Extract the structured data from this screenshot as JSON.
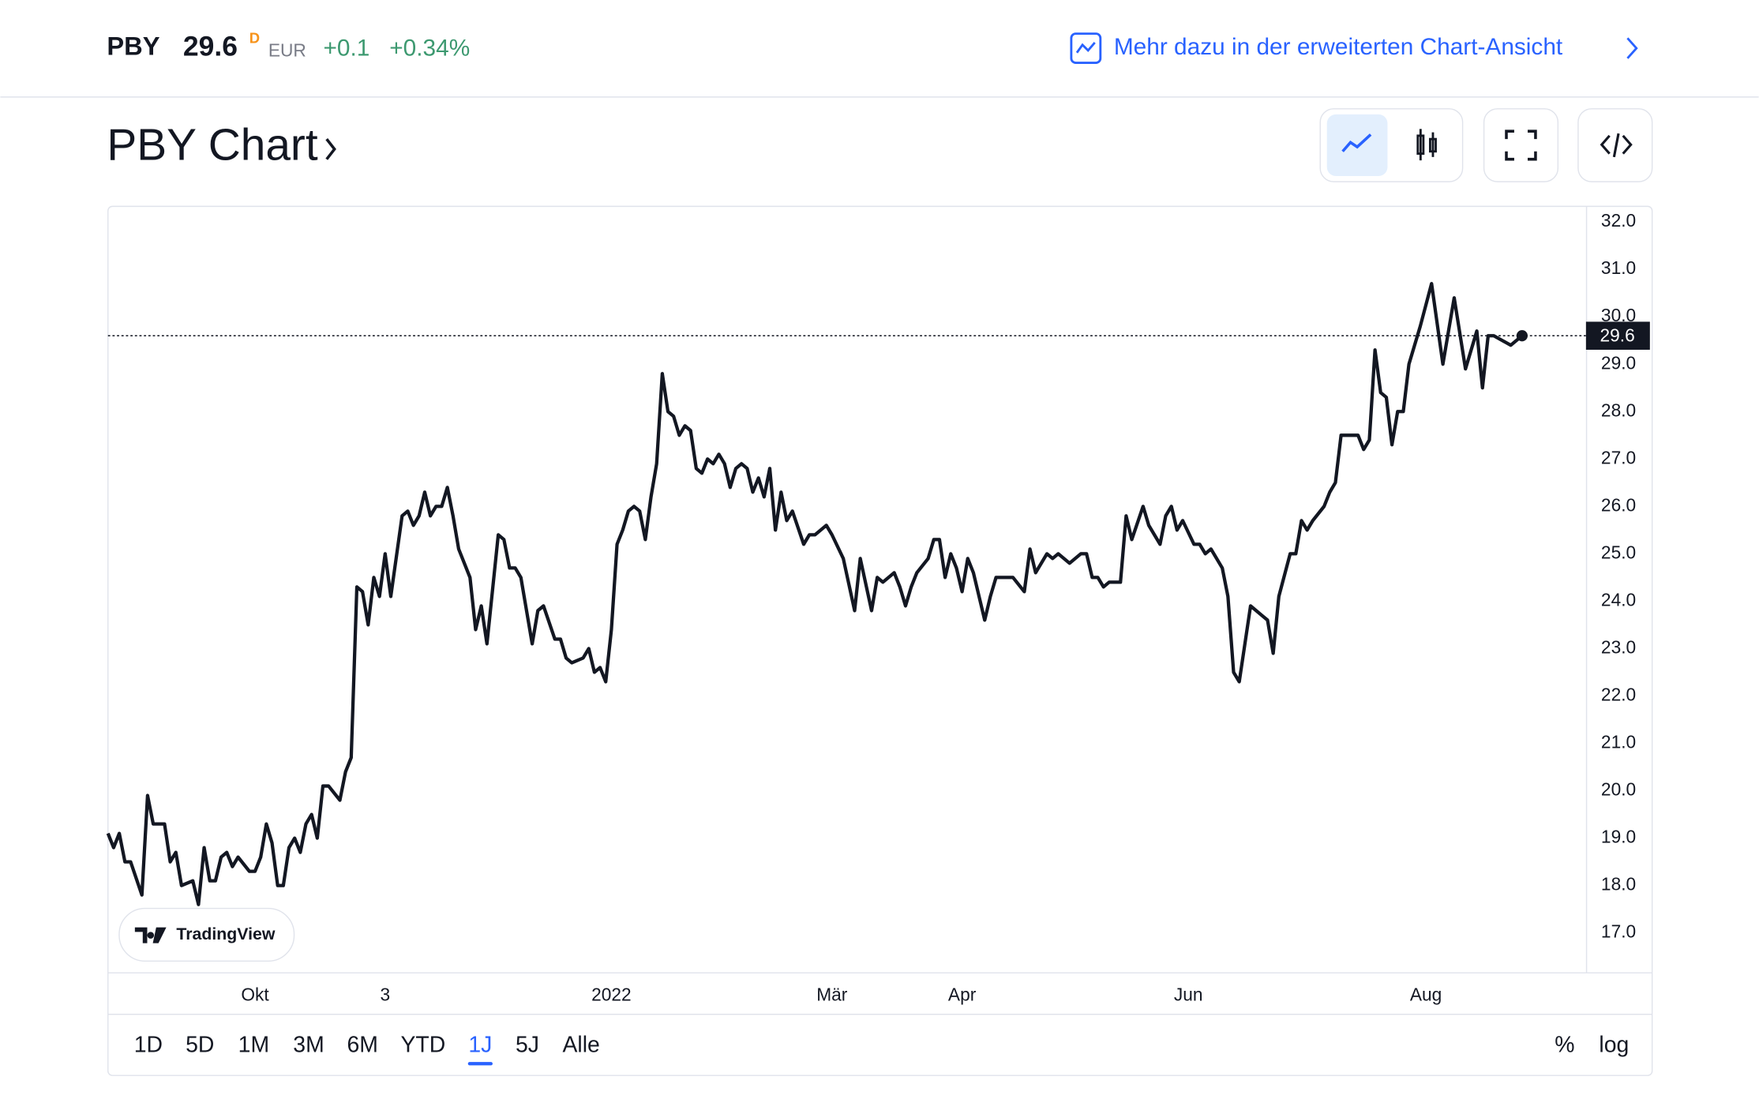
{
  "header": {
    "symbol": "PBY",
    "price": "29.6",
    "flag": "D",
    "currency": "EUR",
    "change": "+0.1",
    "change_pct": "+0.34%",
    "link": "Mehr dazu in der erweiterten Chart-Ansicht"
  },
  "title": "PBY Chart",
  "ranges": [
    "1D",
    "5D",
    "1M",
    "3M",
    "6M",
    "YTD",
    "1J",
    "5J",
    "Alle"
  ],
  "active_range": 6,
  "scale_options": [
    "%",
    "log"
  ],
  "branding": "TradingView",
  "chart_data": {
    "type": "line",
    "series": [
      {
        "name": "PBY",
        "color": "#131722",
        "x": [
          0,
          1,
          2,
          3,
          4,
          6,
          7,
          8,
          10,
          11,
          12,
          13,
          15,
          16,
          17,
          18,
          19,
          20,
          21,
          22,
          23,
          25,
          26,
          27,
          28,
          29,
          30,
          31,
          32,
          33,
          34,
          35,
          36,
          37,
          38,
          39,
          41,
          42,
          43,
          44,
          45,
          46,
          47,
          48,
          49,
          50,
          52,
          53,
          54,
          55,
          56,
          57,
          58,
          59,
          60,
          61,
          62,
          64,
          65,
          66,
          67,
          69,
          70,
          71,
          72,
          73,
          75,
          76,
          77,
          79,
          80,
          81,
          82,
          84,
          85,
          86,
          87,
          88,
          89,
          90,
          91,
          92,
          93,
          94,
          95,
          96,
          97,
          98,
          99,
          100,
          101,
          102,
          103,
          104,
          105,
          106,
          107,
          108,
          109,
          110,
          111,
          112,
          113,
          114,
          115,
          116,
          117,
          118,
          119,
          120,
          121,
          123,
          124,
          125,
          126,
          127,
          128,
          130,
          132,
          133,
          135,
          136,
          137,
          139,
          140,
          141,
          142,
          143,
          145,
          146,
          147,
          148,
          149,
          150,
          151,
          152,
          153,
          155,
          156,
          157,
          159,
          160,
          162,
          163,
          164,
          166,
          167,
          168,
          170,
          172,
          173,
          174,
          175,
          176,
          177,
          178,
          179,
          180,
          181,
          183,
          184,
          186,
          187,
          188,
          189,
          190,
          192,
          193,
          194,
          195,
          197,
          198,
          199,
          200,
          201,
          202,
          204,
          205,
          206,
          207,
          209,
          210,
          211,
          212,
          213,
          215,
          216,
          217,
          218,
          221,
          222,
          223,
          224,
          225,
          226,
          227,
          228,
          229,
          230,
          232,
          234,
          236,
          238,
          240,
          242,
          243,
          244,
          245,
          248,
          250
        ],
        "values": [
          19.1,
          18.8,
          19.1,
          18.5,
          18.5,
          17.8,
          19.9,
          19.3,
          19.3,
          18.5,
          18.7,
          18.0,
          18.1,
          17.6,
          18.8,
          18.1,
          18.1,
          18.6,
          18.7,
          18.4,
          18.6,
          18.3,
          18.3,
          18.6,
          19.3,
          18.9,
          18.0,
          18.0,
          18.8,
          19.0,
          18.7,
          19.3,
          19.5,
          19.0,
          20.1,
          20.1,
          19.8,
          20.4,
          20.7,
          24.3,
          24.2,
          23.5,
          24.5,
          24.1,
          25.0,
          24.1,
          25.8,
          25.9,
          25.6,
          25.8,
          26.3,
          25.8,
          26.0,
          26.0,
          26.4,
          25.8,
          25.1,
          24.5,
          23.4,
          23.9,
          23.1,
          25.4,
          25.3,
          24.7,
          24.7,
          24.5,
          23.1,
          23.8,
          23.9,
          23.2,
          23.2,
          22.8,
          22.7,
          22.8,
          23.0,
          22.5,
          22.6,
          22.3,
          23.4,
          25.2,
          25.5,
          25.9,
          26.0,
          25.9,
          25.3,
          26.2,
          26.9,
          28.8,
          28.0,
          27.9,
          27.5,
          27.7,
          27.6,
          26.8,
          26.7,
          27.0,
          26.9,
          27.1,
          26.9,
          26.4,
          26.8,
          26.9,
          26.8,
          26.3,
          26.6,
          26.2,
          26.8,
          25.5,
          26.3,
          25.7,
          25.9,
          25.2,
          25.4,
          25.4,
          25.5,
          25.6,
          25.4,
          24.9,
          23.8,
          24.9,
          23.8,
          24.5,
          24.4,
          24.6,
          24.3,
          23.9,
          24.3,
          24.6,
          24.9,
          25.3,
          25.3,
          24.5,
          25.0,
          24.7,
          24.2,
          24.9,
          24.6,
          23.6,
          24.1,
          24.5,
          24.5,
          24.5,
          24.2,
          25.1,
          24.6,
          25.0,
          24.9,
          25.0,
          24.8,
          25.0,
          25.0,
          24.5,
          24.5,
          24.3,
          24.4,
          24.4,
          24.4,
          25.8,
          25.3,
          26.0,
          25.6,
          25.2,
          25.8,
          26.0,
          25.5,
          25.7,
          25.2,
          25.2,
          25.0,
          25.1,
          24.7,
          24.1,
          22.5,
          22.3,
          23.1,
          23.9,
          23.7,
          23.6,
          22.9,
          24.1,
          25.0,
          25.0,
          25.7,
          25.5,
          25.7,
          26.0,
          26.3,
          26.5,
          27.5,
          27.5,
          27.2,
          27.4,
          29.3,
          28.4,
          28.3,
          27.3,
          28.0,
          28.0,
          29.0,
          29.8,
          30.7,
          29.0,
          30.4,
          28.9,
          29.7,
          28.5,
          29.6,
          29.6,
          29.4,
          29.6
        ]
      }
    ],
    "xlim": [
      0,
      261.3
    ],
    "xticks": [
      {
        "value": 26,
        "label": "Okt"
      },
      {
        "value": 49,
        "label": "3"
      },
      {
        "value": 89,
        "label": "2022"
      },
      {
        "value": 128,
        "label": "Mär"
      },
      {
        "value": 151,
        "label": "Apr"
      },
      {
        "value": 191,
        "label": "Jun"
      },
      {
        "value": 233,
        "label": "Aug"
      }
    ],
    "ylim": [
      16.17,
      32.33
    ],
    "yticks": [
      {
        "value": 17,
        "label": "17.0"
      },
      {
        "value": 18,
        "label": "18.0"
      },
      {
        "value": 19,
        "label": "19.0"
      },
      {
        "value": 20,
        "label": "20.0"
      },
      {
        "value": 21,
        "label": "21.0"
      },
      {
        "value": 22,
        "label": "22.0"
      },
      {
        "value": 23,
        "label": "23.0"
      },
      {
        "value": 24,
        "label": "24.0"
      },
      {
        "value": 25,
        "label": "25.0"
      },
      {
        "value": 26,
        "label": "26.0"
      },
      {
        "value": 27,
        "label": "27.0"
      },
      {
        "value": 28,
        "label": "28.0"
      },
      {
        "value": 29,
        "label": "29.0"
      },
      {
        "value": 30,
        "label": "30.0"
      },
      {
        "value": 31,
        "label": "31.0"
      },
      {
        "value": 32,
        "label": "32.0"
      }
    ],
    "grid": false
  }
}
